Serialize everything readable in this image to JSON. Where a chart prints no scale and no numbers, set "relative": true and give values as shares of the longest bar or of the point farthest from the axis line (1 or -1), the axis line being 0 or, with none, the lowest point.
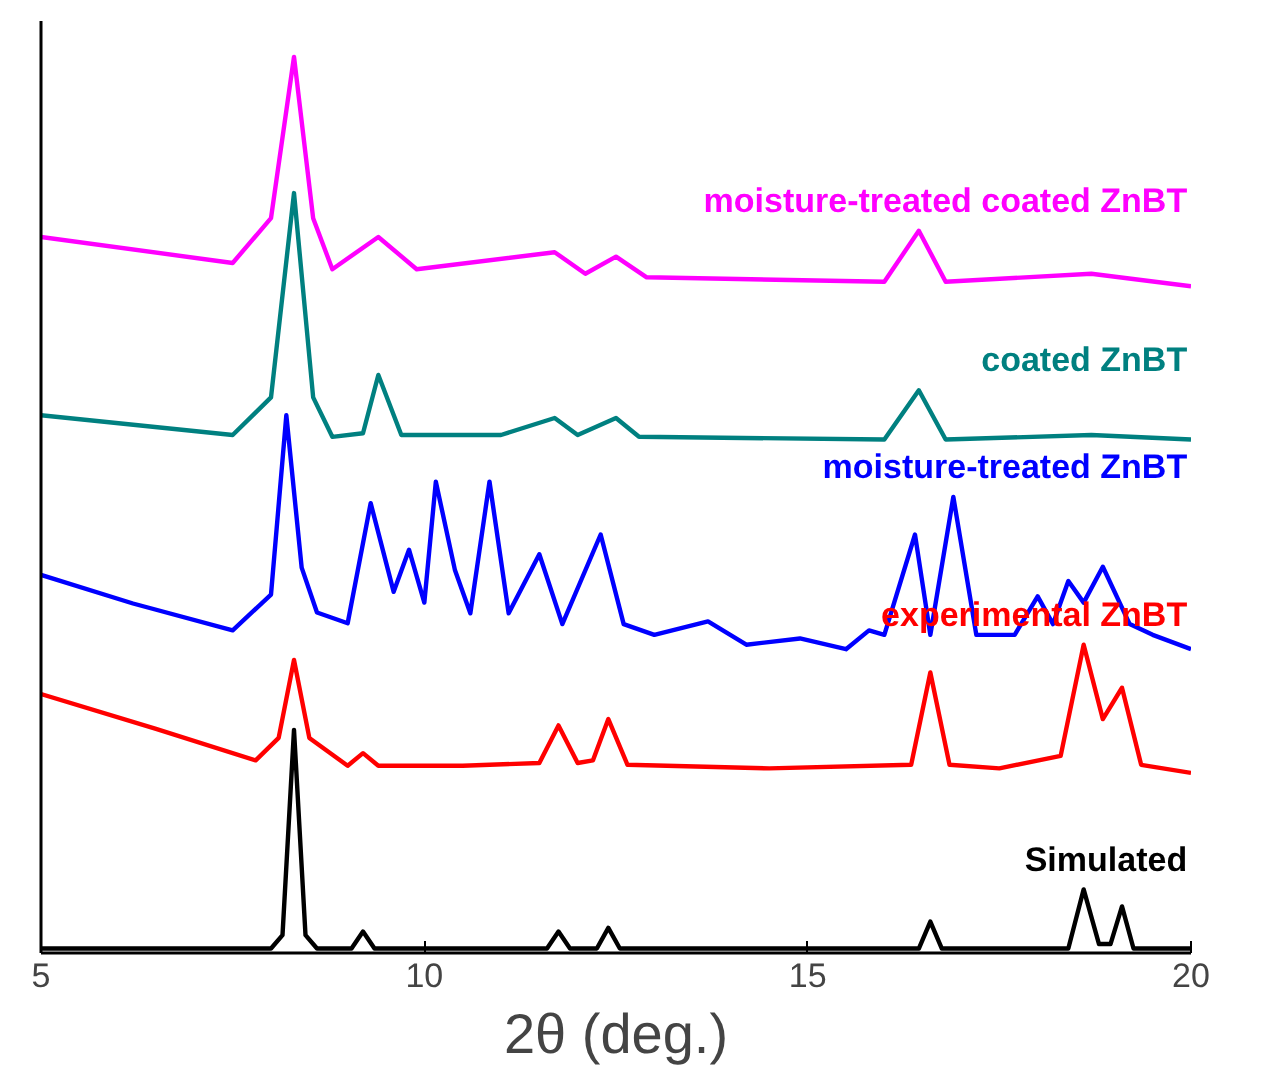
{
  "chart_data": {
    "type": "line",
    "relative": true,
    "xlabel": "2θ (deg.)",
    "xlim": [
      5,
      20
    ],
    "xticks": [
      5,
      10,
      15,
      20
    ],
    "grid": false,
    "legend": false,
    "marker": "none",
    "line_style": "solid",
    "tick_labels": "x",
    "series": [
      {
        "name": "Simulated",
        "color": "#000000",
        "x": [
          5,
          8.0,
          8.15,
          8.3,
          8.45,
          8.6,
          9.05,
          9.2,
          9.35,
          11.6,
          11.75,
          11.9,
          12.25,
          12.4,
          12.55,
          16.45,
          16.6,
          16.75,
          18.4,
          18.6,
          18.8,
          18.95,
          19.1,
          19.25,
          20
        ],
        "values": [
          0.005,
          0.005,
          0.02,
          0.249,
          0.02,
          0.005,
          0.005,
          0.024,
          0.005,
          0.005,
          0.024,
          0.005,
          0.005,
          0.028,
          0.005,
          0.005,
          0.035,
          0.005,
          0.005,
          0.071,
          0.01,
          0.01,
          0.052,
          0.005,
          0.005
        ]
      },
      {
        "name": "experimental ZnBT",
        "color": "#ff0000",
        "x": [
          5,
          6.5,
          7.8,
          8.1,
          8.3,
          8.5,
          9.0,
          9.2,
          9.4,
          10.5,
          11.5,
          11.75,
          12.0,
          12.2,
          12.4,
          12.65,
          14.5,
          16.35,
          16.6,
          16.85,
          17.5,
          18.3,
          18.6,
          18.85,
          19.1,
          19.35,
          20
        ],
        "values": [
          0.289,
          0.25,
          0.215,
          0.24,
          0.327,
          0.24,
          0.209,
          0.223,
          0.209,
          0.209,
          0.212,
          0.254,
          0.212,
          0.215,
          0.261,
          0.21,
          0.206,
          0.21,
          0.313,
          0.21,
          0.206,
          0.22,
          0.344,
          0.261,
          0.296,
          0.21,
          0.201
        ]
      },
      {
        "name": "moisture-treated ZnBT",
        "color": "#0000ff",
        "x": [
          5,
          6.2,
          7.5,
          8.0,
          8.2,
          8.4,
          8.6,
          9.0,
          9.3,
          9.6,
          9.8,
          10.0,
          10.15,
          10.4,
          10.6,
          10.85,
          11.1,
          11.5,
          11.8,
          12.3,
          12.6,
          13.0,
          13.7,
          14.2,
          14.9,
          15.5,
          15.8,
          16.0,
          16.4,
          16.6,
          16.9,
          17.2,
          17.7,
          18.0,
          18.2,
          18.4,
          18.6,
          18.85,
          19.2,
          19.5,
          20
        ],
        "values": [
          0.422,
          0.39,
          0.36,
          0.4,
          0.6,
          0.43,
          0.38,
          0.368,
          0.502,
          0.403,
          0.45,
          0.391,
          0.526,
          0.427,
          0.379,
          0.526,
          0.379,
          0.445,
          0.367,
          0.467,
          0.367,
          0.355,
          0.37,
          0.344,
          0.351,
          0.339,
          0.36,
          0.355,
          0.467,
          0.355,
          0.509,
          0.355,
          0.355,
          0.398,
          0.367,
          0.415,
          0.391,
          0.431,
          0.367,
          0.355,
          0.339
        ]
      },
      {
        "name": "coated ZnBT",
        "color": "#008080",
        "x": [
          5,
          7.5,
          8.0,
          8.3,
          8.55,
          8.8,
          9.2,
          9.4,
          9.7,
          11.0,
          11.7,
          12.0,
          12.5,
          12.8,
          16.0,
          16.45,
          16.8,
          18.7,
          20
        ],
        "values": [
          0.6,
          0.578,
          0.62,
          0.848,
          0.62,
          0.576,
          0.58,
          0.645,
          0.578,
          0.578,
          0.597,
          0.578,
          0.597,
          0.576,
          0.573,
          0.628,
          0.573,
          0.578,
          0.573
        ]
      },
      {
        "name": "moisture-treated coated ZnBT",
        "color": "#ff00ff",
        "x": [
          5,
          7.5,
          8.0,
          8.3,
          8.55,
          8.8,
          9.4,
          9.9,
          11.7,
          12.1,
          12.5,
          12.9,
          16.0,
          16.45,
          16.8,
          18.7,
          20
        ],
        "values": [
          0.799,
          0.77,
          0.82,
          1.0,
          0.82,
          0.763,
          0.799,
          0.763,
          0.782,
          0.758,
          0.777,
          0.754,
          0.749,
          0.806,
          0.749,
          0.758,
          0.744
        ]
      }
    ]
  }
}
